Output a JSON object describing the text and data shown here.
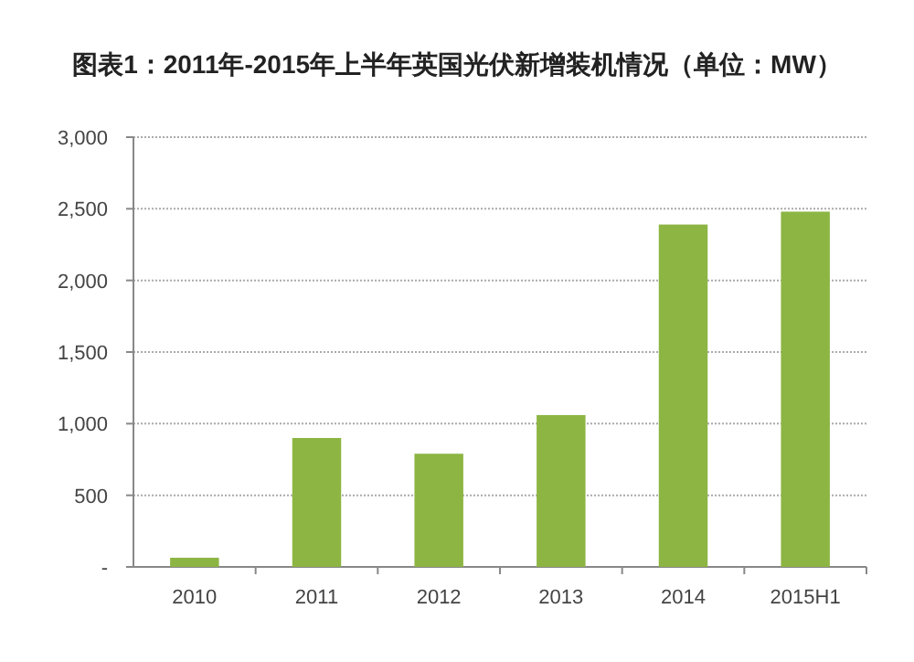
{
  "chart_data": {
    "type": "bar",
    "title": "图表1：2011年-2015年上半年英国光伏新增装机情况（单位：MW）",
    "categories": [
      "2010",
      "2011",
      "2012",
      "2013",
      "2014",
      "2015H1"
    ],
    "values": [
      64,
      900,
      790,
      1060,
      2390,
      2480
    ],
    "color": "#8db543",
    "ylim": [
      0,
      3000
    ],
    "yticks": [
      {
        "value": 0,
        "label": "-"
      },
      {
        "value": 500,
        "label": "500"
      },
      {
        "value": 1000,
        "label": "1,000"
      },
      {
        "value": 1500,
        "label": "1,500"
      },
      {
        "value": 2000,
        "label": "2,000"
      },
      {
        "value": 2500,
        "label": "2,500"
      },
      {
        "value": 3000,
        "label": "3,000"
      }
    ],
    "grid": "y"
  }
}
